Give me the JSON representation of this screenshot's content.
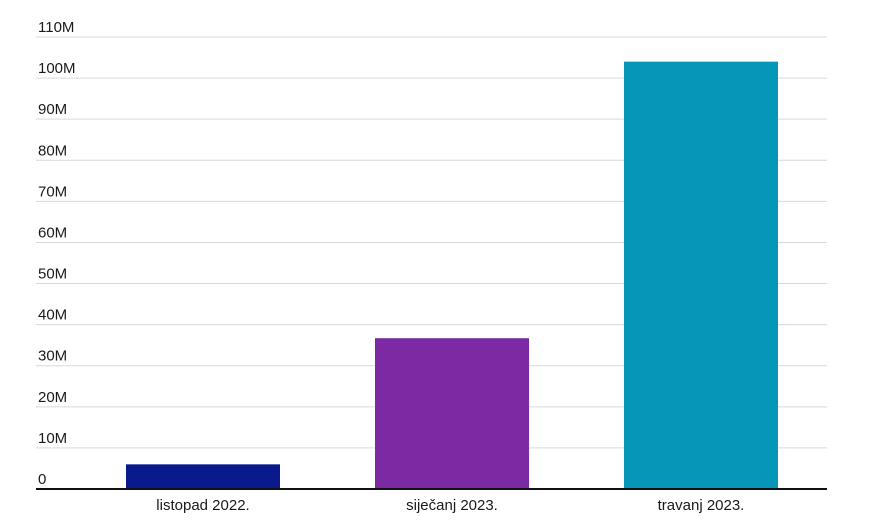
{
  "chart_data": {
    "type": "bar",
    "title": "",
    "xlabel": "",
    "ylabel": "",
    "categories": [
      "listopad 2022.",
      "siječanj 2023.",
      "travanj 2023."
    ],
    "values": [
      6000000,
      36700000,
      104000000
    ],
    "ylim": [
      0,
      110000000
    ],
    "yticks": [
      0,
      10000000,
      20000000,
      30000000,
      40000000,
      50000000,
      60000000,
      70000000,
      80000000,
      90000000,
      100000000,
      110000000
    ],
    "ytick_labels": [
      "0",
      "10M",
      "20M",
      "30M",
      "40M",
      "50M",
      "60M",
      "70M",
      "80M",
      "90M",
      "100M",
      "110M"
    ],
    "grid": true,
    "legend": "none",
    "colors": [
      "#0a1a8c",
      "#7b2aa3",
      "#0596b8"
    ]
  }
}
